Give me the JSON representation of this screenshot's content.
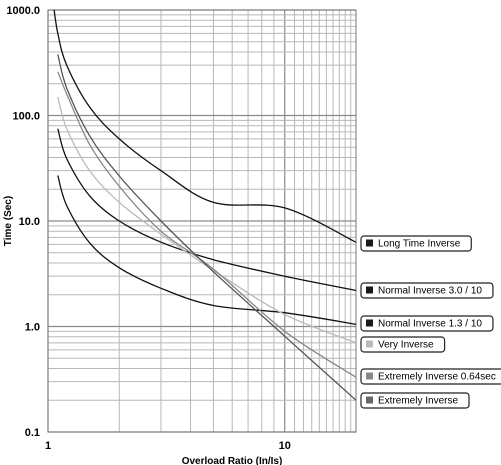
{
  "chart_data": {
    "type": "line",
    "title": "",
    "xlabel": "Overload Ratio  (In/Is)",
    "ylabel": "Time (Sec)",
    "x_scale": "log",
    "y_scale": "log",
    "xlim": [
      1,
      20
    ],
    "ylim": [
      0.1,
      1000
    ],
    "grid": true,
    "legend_position": "right",
    "x_tick_labels": [
      {
        "value": 1,
        "label": "1"
      },
      {
        "value": 10,
        "label": "10"
      }
    ],
    "y_tick_labels": [
      {
        "value": 1000,
        "label": "1000.0"
      },
      {
        "value": 100,
        "label": "100.0"
      },
      {
        "value": 10,
        "label": "10.0"
      },
      {
        "value": 1,
        "label": "1.0"
      },
      {
        "value": 0.1,
        "label": "0.1"
      }
    ],
    "series": [
      {
        "name": "Long Time Inverse",
        "color": "#111111",
        "legend_color": "#1a1a1a",
        "points": [
          [
            1.05,
            1200
          ],
          [
            1.1,
            600
          ],
          [
            1.2,
            300
          ],
          [
            1.5,
            120
          ],
          [
            2,
            60
          ],
          [
            3,
            30
          ],
          [
            5,
            15
          ],
          [
            10,
            13.3
          ],
          [
            20,
            6.3
          ]
        ]
      },
      {
        "name": "Normal Inverse 3.0 / 10",
        "color": "#111111",
        "legend_color": "#1a1a1a",
        "points": [
          [
            1.1,
            75
          ],
          [
            1.2,
            39
          ],
          [
            1.5,
            17.3
          ],
          [
            2,
            10
          ],
          [
            3,
            6.3
          ],
          [
            5,
            4.3
          ],
          [
            10,
            3
          ],
          [
            20,
            2.2
          ]
        ]
      },
      {
        "name": "Normal Inverse 1.3 / 10",
        "color": "#111111",
        "legend_color": "#1a1a1a",
        "points": [
          [
            1.1,
            27
          ],
          [
            1.2,
            14
          ],
          [
            1.5,
            6.2
          ],
          [
            2,
            3.6
          ],
          [
            3,
            2.3
          ],
          [
            5,
            1.58
          ],
          [
            10,
            1.35
          ],
          [
            20,
            1.05
          ]
        ]
      },
      {
        "name": "Very Inverse",
        "color": "#bbbbbb",
        "legend_color": "#bbbbbb",
        "points": [
          [
            1.1,
            150
          ],
          [
            1.2,
            75
          ],
          [
            1.5,
            30
          ],
          [
            2,
            15
          ],
          [
            3,
            7.5
          ],
          [
            5,
            3.4
          ],
          [
            10,
            1.3
          ],
          [
            20,
            0.7
          ]
        ]
      },
      {
        "name": "Extremely Inverse 0.64sec",
        "color": "#888888",
        "legend_color": "#888888",
        "points": [
          [
            1.1,
            260
          ],
          [
            1.2,
            160
          ],
          [
            1.5,
            53
          ],
          [
            2,
            21.3
          ],
          [
            3,
            8
          ],
          [
            5,
            3.5
          ],
          [
            10,
            0.9
          ],
          [
            20,
            0.33
          ]
        ]
      },
      {
        "name": "Extremely Inverse",
        "color": "#555555",
        "legend_color": "#666666",
        "points": [
          [
            1.1,
            380
          ],
          [
            1.2,
            182
          ],
          [
            1.5,
            64
          ],
          [
            2,
            26.7
          ],
          [
            3,
            10
          ],
          [
            5,
            3.3
          ],
          [
            10,
            0.81
          ],
          [
            20,
            0.2
          ]
        ]
      }
    ]
  }
}
